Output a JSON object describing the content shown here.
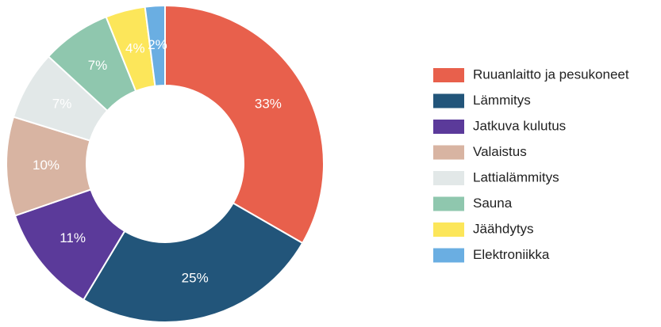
{
  "chart_data": {
    "type": "donut",
    "categories": [
      "Ruuanlaitto ja pesukoneet",
      "Lämmitys",
      "Jatkuva kulutus",
      "Valaistus",
      "Lattialämmitys",
      "Sauna",
      "Jäähdytys",
      "Elektroniikka"
    ],
    "values": [
      33,
      25,
      11,
      10,
      7,
      7,
      4,
      2
    ],
    "value_labels": [
      "33%",
      "25%",
      "11%",
      "10%",
      "7%",
      "7%",
      "4%",
      "2%"
    ],
    "colors": [
      "#e8604c",
      "#22557a",
      "#5b3a9a",
      "#d8b4a2",
      "#e2e8e8",
      "#8fc7ae",
      "#fce65a",
      "#6aaee2"
    ]
  }
}
